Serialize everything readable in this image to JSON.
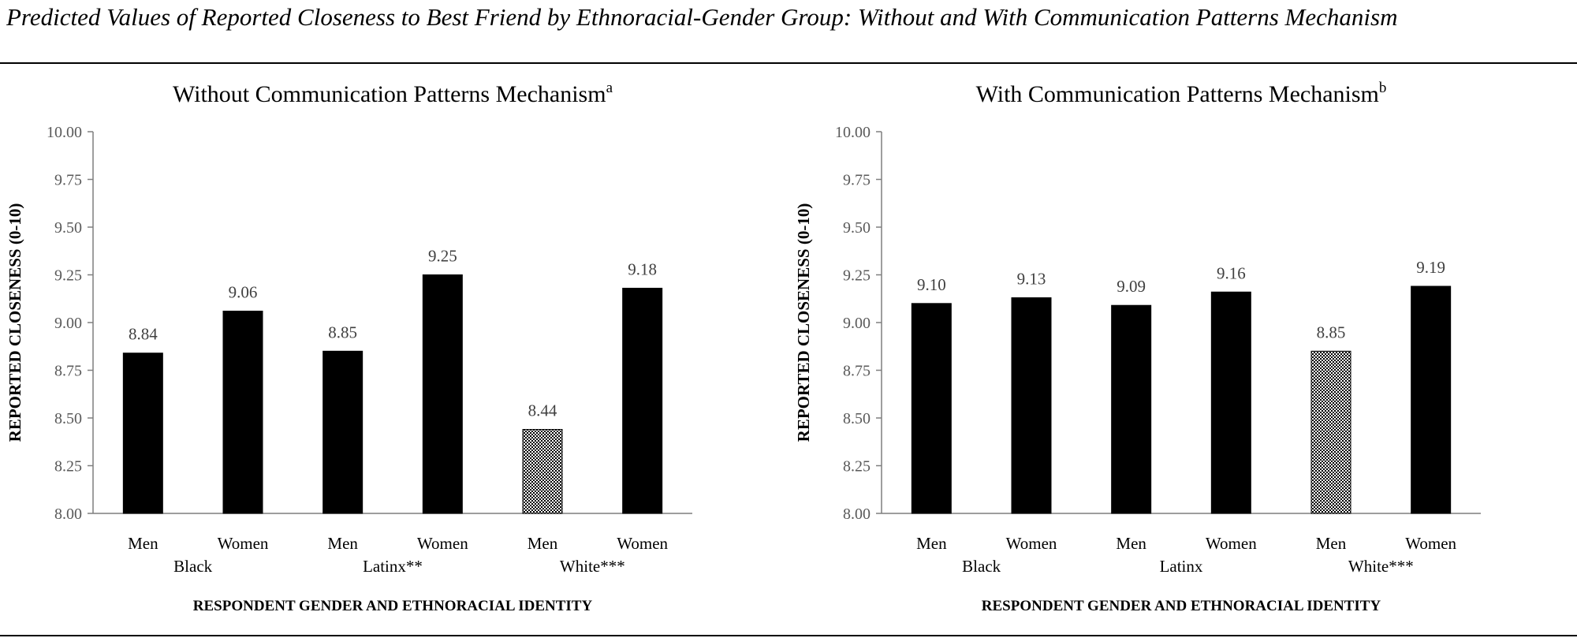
{
  "figure_title": "Predicted Values of Reported Closeness to Best Friend by Ethnoracial-Gender Group: Without and With Communication Patterns Mechanism",
  "colors": {
    "bar": "#000000",
    "highlight_pattern": "checkered",
    "axis": "#7f7f7f"
  },
  "chart_data": [
    {
      "type": "bar",
      "title": "Without Communication Patterns Mechanism",
      "title_superscript": "a",
      "ylabel": "REPORTED CLOSENESS (0-10)",
      "xlabel": "RESPONDENT GENDER AND ETHNORACIAL IDENTITY",
      "ylim": [
        8.0,
        10.0
      ],
      "yticks": [
        "8.00",
        "8.25",
        "8.50",
        "8.75",
        "9.00",
        "9.25",
        "9.50",
        "9.75",
        "10.00"
      ],
      "grid": false,
      "categories": [
        "Men",
        "Women",
        "Men",
        "Women",
        "Men",
        "Women"
      ],
      "groups": [
        "Black",
        "Latinx**",
        "White***"
      ],
      "values": [
        8.84,
        9.06,
        8.85,
        9.25,
        8.44,
        9.18
      ],
      "labels": [
        "8.84",
        "9.06",
        "8.85",
        "9.25",
        "8.44",
        "9.18"
      ],
      "patterned_bar_index": 4
    },
    {
      "type": "bar",
      "title": "With Communication Patterns Mechanism",
      "title_superscript": "b",
      "ylabel": "REPORTED CLOSENESS (0-10)",
      "xlabel": "RESPONDENT GENDER AND ETHNORACIAL IDENTITY",
      "ylim": [
        8.0,
        10.0
      ],
      "yticks": [
        "8.00",
        "8.25",
        "8.50",
        "8.75",
        "9.00",
        "9.25",
        "9.50",
        "9.75",
        "10.00"
      ],
      "grid": false,
      "categories": [
        "Men",
        "Women",
        "Men",
        "Women",
        "Men",
        "Women"
      ],
      "groups": [
        "Black",
        "Latinx",
        "White***"
      ],
      "values": [
        9.1,
        9.13,
        9.09,
        9.16,
        8.85,
        9.19
      ],
      "labels": [
        "9.10",
        "9.13",
        "9.09",
        "9.16",
        "8.85",
        "9.19"
      ],
      "patterned_bar_index": 4
    }
  ]
}
